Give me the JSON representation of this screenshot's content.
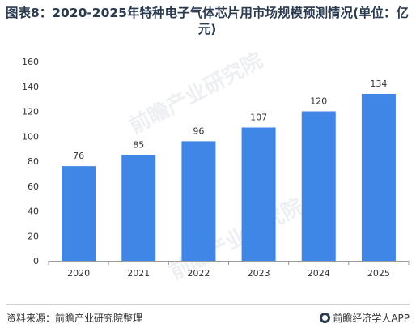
{
  "header": {
    "title": "图表8：2020-2025年特种电子气体芯片用市场规模预测情况(单位：亿元)"
  },
  "footer": {
    "source": "资料来源：前瞻产业研究院整理",
    "brand": "前瞻经济学人APP"
  },
  "watermark": {
    "text": "前瞻产业研究院"
  },
  "colors": {
    "bar": "#3f86e6",
    "axis": "#999999",
    "text": "#333333"
  },
  "chart_data": {
    "type": "bar",
    "title": "图表8：2020-2025年特种电子气体芯片用市场规模预测情况(单位：亿元)",
    "xlabel": "",
    "ylabel": "",
    "categories": [
      "2020",
      "2021",
      "2022",
      "2023",
      "2024",
      "2025"
    ],
    "values": [
      76,
      85,
      96,
      107,
      120,
      134
    ],
    "ylim": [
      0,
      160
    ],
    "yticks": [
      0,
      20,
      40,
      60,
      80,
      100,
      120,
      140,
      160
    ],
    "grid": false,
    "legend": "none"
  }
}
